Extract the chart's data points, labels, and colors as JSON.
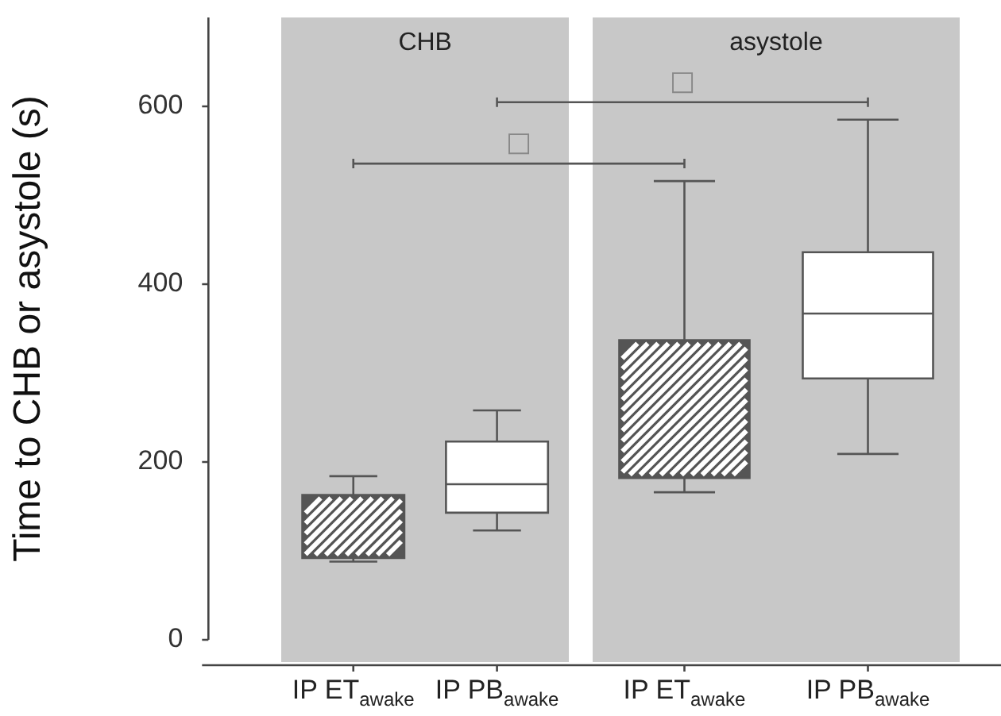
{
  "chart_data": [
    {
      "type": "box",
      "title": "CHB",
      "ylabel": "Time to CHB or asystole (s)",
      "categories": [
        "IP ET$_{awake}$",
        "IP PB$_{awake}$"
      ],
      "boxes": [
        {
          "low": 88,
          "q1": 92,
          "median": 112,
          "q3": 163,
          "high": 184
        },
        {
          "low": 123,
          "q1": 143,
          "median": 175,
          "q3": 223,
          "high": 258
        }
      ],
      "colors": [
        "#555555",
        "#ffffff"
      ],
      "ylim": [
        0,
        700
      ],
      "yticks": [
        0,
        200,
        400,
        600
      ],
      "grid": false,
      "annotations": [
        "□"
      ]
    },
    {
      "type": "box",
      "title": "asystole",
      "categories": [
        "IP ET$_{awake}$",
        "IP PB$_{awake}$"
      ],
      "boxes": [
        {
          "low": 166,
          "q1": 182,
          "median": 234,
          "q3": 337,
          "high": 516
        },
        {
          "low": 209,
          "q1": 294,
          "median": 367,
          "q3": 436,
          "high": 585
        }
      ],
      "colors": [
        "#555555",
        "#ffffff"
      ],
      "ylim": [
        -25,
        700
      ],
      "yticks": [
        0,
        200,
        400,
        600
      ],
      "grid": false,
      "tick_labels": "x",
      "annotations": [
        "□"
      ]
    }
  ]
}
